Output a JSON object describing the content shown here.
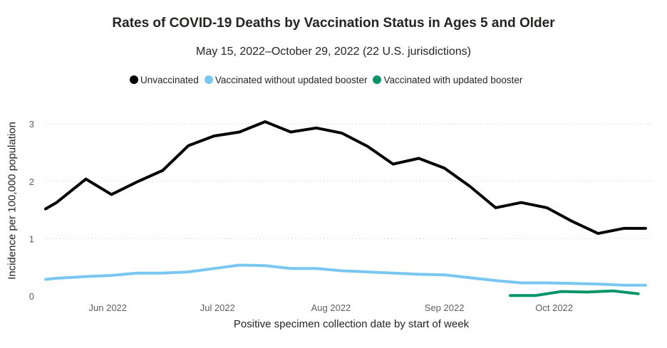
{
  "chart_data": {
    "type": "line",
    "title": "Rates of COVID-19 Deaths by Vaccination Status in Ages 5 and Older",
    "subtitle": "May 15, 2022–October 29, 2022 (22 U.S. jurisdictions)",
    "xlabel": "Positive specimen collection date by start of week",
    "ylabel": "Incidence per 100,000 population",
    "ylim": [
      0,
      3.3
    ],
    "yticks": [
      0,
      1,
      2,
      3
    ],
    "xlim_days": [
      0,
      164
    ],
    "xtick_labels": [
      {
        "label": "Jun 2022",
        "day": 17
      },
      {
        "label": "Jul 2022",
        "day": 47
      },
      {
        "label": "Aug 2022",
        "day": 78
      },
      {
        "label": "Sep 2022",
        "day": 109
      },
      {
        "label": "Oct 2022",
        "day": 139
      }
    ],
    "legend_position": "top",
    "grid": "horizontal-dotted",
    "series": [
      {
        "name": "Unvaccinated",
        "color": "#000000",
        "days": [
          0,
          3,
          11,
          18,
          25,
          32,
          39,
          46,
          53,
          60,
          67,
          74,
          81,
          88,
          95,
          102,
          109,
          116,
          123,
          130,
          137,
          144,
          151,
          158,
          164
        ],
        "values": [
          1.52,
          1.63,
          2.04,
          1.77,
          1.99,
          2.19,
          2.62,
          2.79,
          2.86,
          3.04,
          2.86,
          2.93,
          2.84,
          2.61,
          2.3,
          2.4,
          2.23,
          1.91,
          1.54,
          1.63,
          1.54,
          1.3,
          1.09,
          1.18,
          1.18
        ]
      },
      {
        "name": "Vaccinated without updated booster",
        "color": "#79C7F0",
        "days": [
          0,
          3,
          11,
          18,
          25,
          32,
          39,
          46,
          53,
          60,
          67,
          74,
          81,
          88,
          95,
          102,
          109,
          116,
          123,
          130,
          137,
          144,
          151,
          158,
          164
        ],
        "values": [
          0.29,
          0.31,
          0.34,
          0.36,
          0.4,
          0.4,
          0.42,
          0.48,
          0.54,
          0.53,
          0.48,
          0.48,
          0.44,
          0.42,
          0.4,
          0.38,
          0.37,
          0.32,
          0.27,
          0.23,
          0.23,
          0.22,
          0.21,
          0.19,
          0.19
        ]
      },
      {
        "name": "Vaccinated with updated booster",
        "color": "#05946A",
        "days": [
          127,
          134,
          141,
          148,
          155,
          162
        ],
        "values": [
          0.01,
          0.01,
          0.08,
          0.07,
          0.09,
          0.04
        ]
      }
    ]
  }
}
